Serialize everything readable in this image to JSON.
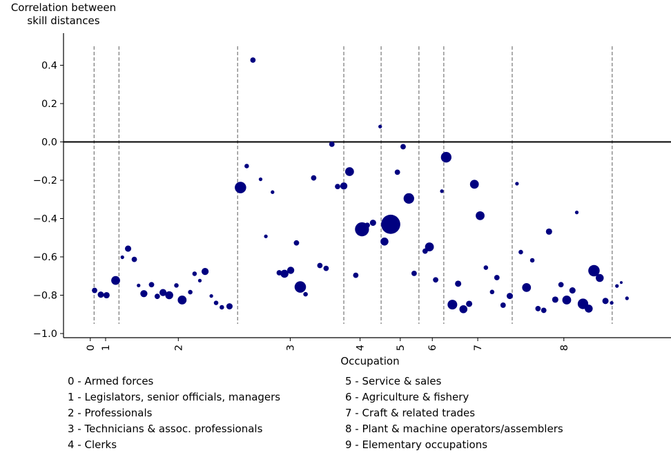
{
  "chart_data": {
    "type": "scatter",
    "ylabel": "Correlation between\nskill distances",
    "xlabel": "Occupation",
    "ylim": [
      -1.02,
      0.58
    ],
    "yticks": [
      0.4,
      0.2,
      0.0,
      -0.2,
      -0.4,
      -0.6,
      -0.8,
      -1.0
    ],
    "ytick_labels": [
      "0.4",
      "0.2",
      "0.0",
      "−0.2",
      "−0.4",
      "−0.6",
      "−0.8",
      "−1.0"
    ],
    "xlim": [
      0,
      127
    ],
    "xticks": [
      {
        "label": "0",
        "x": 5.6
      },
      {
        "label": "1",
        "x": 8.8
      },
      {
        "label": "2",
        "x": 24.0
      },
      {
        "label": "3",
        "x": 47.4
      },
      {
        "label": "4",
        "x": 62.0
      },
      {
        "label": "5",
        "x": 70.4
      },
      {
        "label": "6",
        "x": 77.1
      },
      {
        "label": "7",
        "x": 86.6
      },
      {
        "label": "8",
        "x": 104.6
      }
    ],
    "dividers": [
      6.4,
      11.6,
      36.4,
      58.6,
      66.4,
      74.3,
      79.5,
      93.8,
      114.7
    ],
    "reference_line": 0.0,
    "marker_color": "#000080",
    "points": [
      {
        "x": 6.5,
        "y": -0.775,
        "s": 2
      },
      {
        "x": 7.8,
        "y": -0.797,
        "s": 2.5
      },
      {
        "x": 9.0,
        "y": -0.8,
        "s": 2.5
      },
      {
        "x": 10.9,
        "y": -0.723,
        "s": 4
      },
      {
        "x": 12.3,
        "y": -0.602,
        "s": 1
      },
      {
        "x": 13.5,
        "y": -0.557,
        "s": 2.5
      },
      {
        "x": 14.8,
        "y": -0.613,
        "s": 2
      },
      {
        "x": 15.7,
        "y": -0.749,
        "s": 1
      },
      {
        "x": 16.8,
        "y": -0.792,
        "s": 3
      },
      {
        "x": 18.4,
        "y": -0.745,
        "s": 2
      },
      {
        "x": 19.6,
        "y": -0.806,
        "s": 2
      },
      {
        "x": 20.8,
        "y": -0.786,
        "s": 3
      },
      {
        "x": 22.1,
        "y": -0.8,
        "s": 3.5
      },
      {
        "x": 23.6,
        "y": -0.749,
        "s": 1.5
      },
      {
        "x": 24.8,
        "y": -0.825,
        "s": 4
      },
      {
        "x": 26.5,
        "y": -0.784,
        "s": 1.5
      },
      {
        "x": 27.4,
        "y": -0.688,
        "s": 1.5
      },
      {
        "x": 28.5,
        "y": -0.724,
        "s": 1
      },
      {
        "x": 29.6,
        "y": -0.676,
        "s": 3
      },
      {
        "x": 30.9,
        "y": -0.804,
        "s": 1
      },
      {
        "x": 31.9,
        "y": -0.84,
        "s": 1.5
      },
      {
        "x": 33.1,
        "y": -0.863,
        "s": 1.5
      },
      {
        "x": 34.7,
        "y": -0.858,
        "s": 2.5
      },
      {
        "x": 37.0,
        "y": -0.238,
        "s": 5.5
      },
      {
        "x": 38.3,
        "y": -0.126,
        "s": 1.5
      },
      {
        "x": 39.6,
        "y": 0.427,
        "s": 2
      },
      {
        "x": 41.2,
        "y": -0.195,
        "s": 1
      },
      {
        "x": 42.3,
        "y": -0.493,
        "s": 1
      },
      {
        "x": 43.7,
        "y": -0.262,
        "s": 1
      },
      {
        "x": 45.1,
        "y": -0.683,
        "s": 2
      },
      {
        "x": 46.2,
        "y": -0.688,
        "s": 3.5
      },
      {
        "x": 47.5,
        "y": -0.67,
        "s": 3
      },
      {
        "x": 48.7,
        "y": -0.527,
        "s": 2
      },
      {
        "x": 49.5,
        "y": -0.757,
        "s": 5.5
      },
      {
        "x": 50.6,
        "y": -0.795,
        "s": 1.5
      },
      {
        "x": 52.3,
        "y": -0.188,
        "s": 2
      },
      {
        "x": 53.6,
        "y": -0.645,
        "s": 2
      },
      {
        "x": 54.9,
        "y": -0.66,
        "s": 2
      },
      {
        "x": 56.1,
        "y": -0.012,
        "s": 2
      },
      {
        "x": 57.3,
        "y": -0.233,
        "s": 2
      },
      {
        "x": 58.6,
        "y": -0.23,
        "s": 3
      },
      {
        "x": 59.8,
        "y": -0.155,
        "s": 4
      },
      {
        "x": 61.1,
        "y": -0.696,
        "s": 2
      },
      {
        "x": 62.4,
        "y": -0.456,
        "s": 7
      },
      {
        "x": 63.5,
        "y": -0.435,
        "s": 2
      },
      {
        "x": 64.7,
        "y": -0.422,
        "s": 2.5
      },
      {
        "x": 66.2,
        "y": 0.08,
        "s": 1
      },
      {
        "x": 67.1,
        "y": -0.52,
        "s": 3.5
      },
      {
        "x": 68.4,
        "y": -0.43,
        "s": 10
      },
      {
        "x": 69.8,
        "y": -0.158,
        "s": 2
      },
      {
        "x": 71.0,
        "y": -0.025,
        "s": 2
      },
      {
        "x": 72.2,
        "y": -0.295,
        "s": 5
      },
      {
        "x": 73.3,
        "y": -0.686,
        "s": 2
      },
      {
        "x": 75.6,
        "y": -0.57,
        "s": 2
      },
      {
        "x": 76.5,
        "y": -0.548,
        "s": 4
      },
      {
        "x": 77.8,
        "y": -0.72,
        "s": 2
      },
      {
        "x": 79.1,
        "y": -0.257,
        "s": 1
      },
      {
        "x": 80.0,
        "y": -0.08,
        "s": 5
      },
      {
        "x": 81.3,
        "y": -0.849,
        "s": 4.5
      },
      {
        "x": 82.5,
        "y": -0.74,
        "s": 2.5
      },
      {
        "x": 83.6,
        "y": -0.873,
        "s": 3.5
      },
      {
        "x": 84.8,
        "y": -0.845,
        "s": 2.5
      },
      {
        "x": 85.9,
        "y": -0.221,
        "s": 4
      },
      {
        "x": 87.1,
        "y": -0.385,
        "s": 4
      },
      {
        "x": 88.3,
        "y": -0.656,
        "s": 1.5
      },
      {
        "x": 89.6,
        "y": -0.783,
        "s": 1.5
      },
      {
        "x": 90.6,
        "y": -0.708,
        "s": 2
      },
      {
        "x": 91.9,
        "y": -0.852,
        "s": 2
      },
      {
        "x": 93.3,
        "y": -0.804,
        "s": 2.5
      },
      {
        "x": 94.8,
        "y": -0.218,
        "s": 1
      },
      {
        "x": 95.6,
        "y": -0.575,
        "s": 1.5
      },
      {
        "x": 96.8,
        "y": -0.76,
        "s": 4
      },
      {
        "x": 98.0,
        "y": -0.618,
        "s": 1.5
      },
      {
        "x": 99.2,
        "y": -0.87,
        "s": 2
      },
      {
        "x": 100.4,
        "y": -0.879,
        "s": 2
      },
      {
        "x": 101.5,
        "y": -0.468,
        "s": 2.5
      },
      {
        "x": 102.8,
        "y": -0.823,
        "s": 2.5
      },
      {
        "x": 104.0,
        "y": -0.745,
        "s": 2
      },
      {
        "x": 105.2,
        "y": -0.825,
        "s": 4
      },
      {
        "x": 106.4,
        "y": -0.775,
        "s": 2.5
      },
      {
        "x": 107.3,
        "y": -0.368,
        "s": 1
      },
      {
        "x": 108.6,
        "y": -0.845,
        "s": 5
      },
      {
        "x": 109.8,
        "y": -0.87,
        "s": 3.5
      },
      {
        "x": 110.9,
        "y": -0.672,
        "s": 5.5
      },
      {
        "x": 112.1,
        "y": -0.71,
        "s": 3.5
      },
      {
        "x": 113.3,
        "y": -0.83,
        "s": 2.5
      },
      {
        "x": 114.6,
        "y": -0.84,
        "s": 1
      },
      {
        "x": 115.7,
        "y": -0.752,
        "s": 1
      },
      {
        "x": 116.6,
        "y": -0.734,
        "s": 0.5
      },
      {
        "x": 117.8,
        "y": -0.816,
        "s": 1
      }
    ]
  },
  "legend": {
    "left": [
      "0 - Armed forces",
      "1 - Legislators, senior officials, managers",
      "2 - Professionals",
      "3 - Technicians & assoc. professionals",
      "4 - Clerks"
    ],
    "right": [
      "5 - Service & sales",
      "6 - Agriculture & fishery",
      "7 - Craft & related trades",
      "8 - Plant & machine operators/assemblers",
      "9 - Elementary occupations"
    ]
  }
}
